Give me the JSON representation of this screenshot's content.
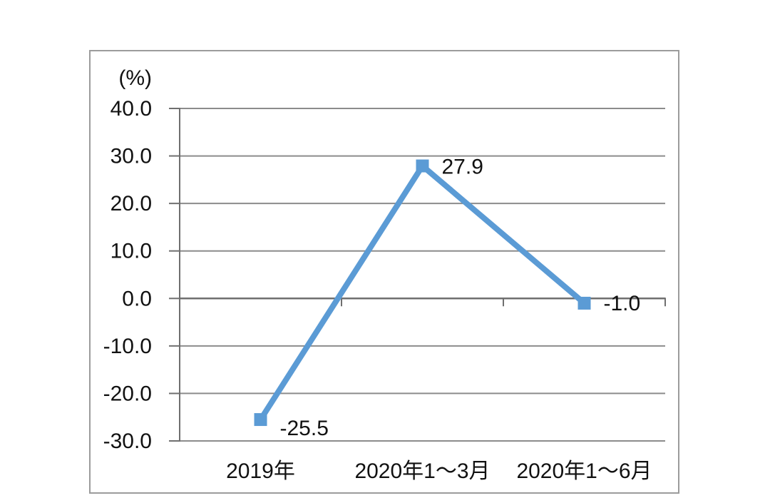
{
  "page": {
    "background": "#FFFFFF"
  },
  "chart_data": {
    "type": "line",
    "title": "",
    "unit_label": "(%)",
    "categories": [
      "2019年",
      "2020年1～3月",
      "2020年1～6月"
    ],
    "series": [
      {
        "values": [
          -25.5,
          27.9,
          -1.0
        ],
        "labels": [
          "-25.5",
          "27.9",
          "-1.0"
        ],
        "color": "#5B9BD5",
        "marker": "square"
      }
    ],
    "ylim": [
      -30,
      40
    ],
    "ytick_step": 10,
    "ytick_labels": [
      "40.0",
      "30.0",
      "20.0",
      "10.0",
      "0.0",
      "-10.0",
      "-20.0",
      "-30.0"
    ],
    "grid": true,
    "legend_position": "none"
  },
  "colors": {
    "line": "#5B9BD5",
    "grid": "#8C8C8C",
    "axis": "#6F6F6F",
    "frame_border": "#9C9C9C",
    "text": "#111111"
  }
}
